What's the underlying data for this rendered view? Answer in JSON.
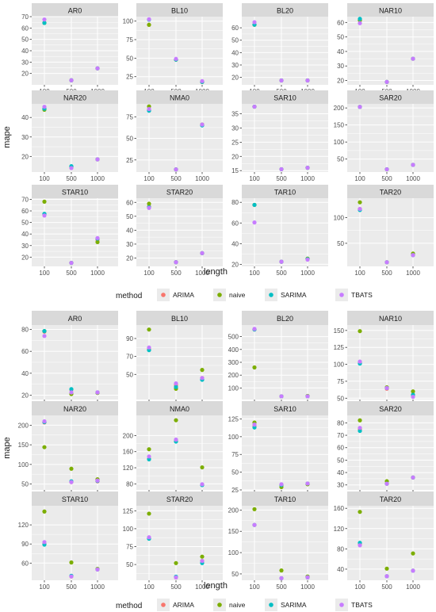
{
  "colors": {
    "panel_bg": "#ebebeb",
    "strip_bg": "#d9d9d9",
    "grid_major": "#ffffff",
    "tick_text": "#4d4d4d",
    "title_text": "#1a1a1a",
    "ARIMA": "#f8766d",
    "naive": "#7cae00",
    "SARIMA": "#00bfc4",
    "TBATS": "#c77cff"
  },
  "chart_data": [
    {
      "type": "scatter",
      "facet_layout": "4x3 grid, free y scales",
      "xlabel": "length",
      "ylabel": "mape",
      "x_categories": [
        "100",
        "500",
        "1000"
      ],
      "legend": {
        "title": "method",
        "placement": "bottom",
        "entries": [
          "ARIMA",
          "naive",
          "SARIMA",
          "TBATS"
        ]
      },
      "grid": true,
      "panels": [
        {
          "name": "AR0",
          "ylim": [
            10,
            70
          ],
          "yticks": [
            20,
            30,
            40,
            50,
            60,
            70
          ],
          "series": {
            "ARIMA": [
              64.5,
              14,
              24.5
            ],
            "naive": [
              64.5,
              14,
              24.5
            ],
            "SARIMA": [
              64.5,
              14,
              24.5
            ],
            "TBATS": [
              67.5,
              14,
              24.5
            ]
          }
        },
        {
          "name": "BL10",
          "ylim": [
            14,
            106
          ],
          "yticks": [
            25,
            50,
            75,
            100
          ],
          "series": {
            "ARIMA": [
              95,
              48,
              18
            ],
            "naive": [
              95,
              48,
              18
            ],
            "SARIMA": [
              102,
              48,
              18
            ],
            "TBATS": [
              102.5,
              49,
              19
            ]
          }
        },
        {
          "name": "BL20",
          "ylim": [
            14,
            69
          ],
          "yticks": [
            20,
            30,
            40,
            50,
            60
          ],
          "series": {
            "ARIMA": [
              62.5,
              17.5,
              17.5
            ],
            "naive": [
              62.5,
              17.5,
              17.5
            ],
            "SARIMA": [
              62.5,
              17.5,
              17.5
            ],
            "TBATS": [
              64.5,
              17.5,
              17.5
            ]
          }
        },
        {
          "name": "NAR10",
          "ylim": [
            17,
            64
          ],
          "yticks": [
            20,
            30,
            40,
            50,
            60
          ],
          "series": {
            "ARIMA": [
              61.5,
              19,
              35
            ],
            "naive": [
              61.5,
              19,
              35
            ],
            "SARIMA": [
              62.5,
              19,
              35
            ],
            "TBATS": [
              59.5,
              19,
              35
            ]
          }
        },
        {
          "name": "NAR20",
          "ylim": [
            12,
            47
          ],
          "yticks": [
            20,
            30,
            40
          ],
          "series": {
            "ARIMA": [
              44.5,
              14.5,
              18.5
            ],
            "naive": [
              44,
              14.5,
              18.5
            ],
            "SARIMA": [
              44.5,
              15,
              18.5
            ],
            "TBATS": [
              45.5,
              14,
              18.5
            ]
          }
        },
        {
          "name": "NMA0",
          "ylim": [
            11,
            90
          ],
          "yticks": [
            25,
            50,
            75
          ],
          "series": {
            "ARIMA": [
              83,
              14,
              66
            ],
            "naive": [
              87,
              14,
              66
            ],
            "SARIMA": [
              82,
              14,
              65
            ],
            "TBATS": [
              84,
              14,
              66
            ]
          }
        },
        {
          "name": "SAR10",
          "ylim": [
            14.5,
            38.5
          ],
          "yticks": [
            15,
            20,
            25,
            30,
            35
          ],
          "series": {
            "ARIMA": [
              37.5,
              15.5,
              16
            ],
            "naive": [
              37.5,
              15.5,
              16
            ],
            "SARIMA": [
              37.5,
              15.5,
              16
            ],
            "TBATS": [
              37.5,
              15.5,
              16
            ]
          }
        },
        {
          "name": "SAR20",
          "ylim": [
            12,
            212
          ],
          "yticks": [
            50,
            100,
            150,
            200
          ],
          "series": {
            "ARIMA": [
              203,
              20,
              33
            ],
            "naive": [
              203,
              20,
              33
            ],
            "SARIMA": [
              203,
              20,
              33
            ],
            "TBATS": [
              203,
              20,
              33
            ]
          }
        },
        {
          "name": "STAR10",
          "ylim": [
            12,
            71
          ],
          "yticks": [
            20,
            30,
            40,
            50,
            60,
            70
          ],
          "series": {
            "ARIMA": [
              57,
              15,
              35
            ],
            "naive": [
              68,
              15,
              33
            ],
            "SARIMA": [
              57.5,
              15,
              36
            ],
            "TBATS": [
              56,
              15,
              36.5
            ]
          }
        },
        {
          "name": "STAR20",
          "ylim": [
            14,
            63
          ],
          "yticks": [
            20,
            30,
            40,
            50,
            60
          ],
          "series": {
            "ARIMA": [
              57,
              17,
              23.5
            ],
            "naive": [
              59,
              17,
              23.5
            ],
            "SARIMA": [
              56.5,
              17,
              23.5
            ],
            "TBATS": [
              56,
              17,
              23.5
            ]
          }
        },
        {
          "name": "TAR10",
          "ylim": [
            18,
            84
          ],
          "yticks": [
            20,
            40,
            60,
            80
          ],
          "series": {
            "ARIMA": [
              77.5,
              22.5,
              25
            ],
            "naive": [
              77.5,
              22.5,
              25.5
            ],
            "SARIMA": [
              77.5,
              22.5,
              25
            ],
            "TBATS": [
              60.5,
              22.5,
              24.5
            ]
          }
        },
        {
          "name": "TAR20",
          "ylim": [
            5,
            138
          ],
          "yticks": [
            50,
            100
          ],
          "series": {
            "ARIMA": [
              117,
              13,
              27
            ],
            "naive": [
              130,
              13,
              30
            ],
            "SARIMA": [
              115,
              13,
              27
            ],
            "TBATS": [
              117,
              13,
              27
            ]
          }
        }
      ]
    },
    {
      "type": "scatter",
      "facet_layout": "4x3 grid, free y scales",
      "xlabel": "length",
      "ylabel": "mape",
      "x_categories": [
        "100",
        "500",
        "1000"
      ],
      "legend": {
        "title": "method",
        "placement": "bottom",
        "entries": [
          "ARIMA",
          "naive",
          "SARIMA",
          "TBATS"
        ]
      },
      "grid": true,
      "panels": [
        {
          "name": "AR0",
          "ylim": [
            16,
            84
          ],
          "yticks": [
            20,
            40,
            60,
            80
          ],
          "series": {
            "ARIMA": [
              78,
              25,
              22.5
            ],
            "naive": [
              78.5,
              21,
              22
            ],
            "SARIMA": [
              78.5,
              25.5,
              22.5
            ],
            "TBATS": [
              74,
              22.5,
              22.5
            ]
          }
        },
        {
          "name": "BL10",
          "ylim": [
            22,
            105
          ],
          "yticks": [
            50,
            70,
            90
          ],
          "series": {
            "ARIMA": [
              78,
              38,
              46
            ],
            "naive": [
              100,
              34,
              55
            ],
            "SARIMA": [
              77,
              36,
              44
            ],
            "TBATS": [
              80,
              40,
              46
            ]
          }
        },
        {
          "name": "BL20",
          "ylim": [
            10,
            590
          ],
          "yticks": [
            100,
            200,
            300,
            400,
            500
          ],
          "series": {
            "ARIMA": [
              555,
              35,
              35
            ],
            "naive": [
              260,
              35,
              38
            ],
            "SARIMA": [
              555,
              35,
              35
            ],
            "TBATS": [
              560,
              35,
              35
            ]
          }
        },
        {
          "name": "NAR10",
          "ylim": [
            48,
            158
          ],
          "yticks": [
            50,
            75,
            100,
            125,
            150
          ],
          "series": {
            "ARIMA": [
              103,
              64,
              55
            ],
            "naive": [
              149,
              66,
              60
            ],
            "SARIMA": [
              101,
              65,
              55
            ],
            "TBATS": [
              104,
              65,
              52
            ]
          }
        },
        {
          "name": "NAR20",
          "ylim": [
            35,
            225
          ],
          "yticks": [
            50,
            100,
            150,
            200
          ],
          "series": {
            "ARIMA": [
              207,
              55,
              57
            ],
            "naive": [
              144,
              89,
              62
            ],
            "SARIMA": [
              208,
              57,
              58
            ],
            "TBATS": [
              210,
              55,
              59
            ]
          }
        },
        {
          "name": "NMA0",
          "ylim": [
            65,
            250
          ],
          "yticks": [
            80,
            120,
            160,
            200
          ],
          "series": {
            "ARIMA": [
              142,
              187,
              78
            ],
            "naive": [
              166,
              238,
              121
            ],
            "SARIMA": [
              141,
              185,
              77
            ],
            "TBATS": [
              148,
              190,
              79
            ]
          }
        },
        {
          "name": "SAR10",
          "ylim": [
            25,
            130
          ],
          "yticks": [
            25,
            50,
            75,
            100,
            125
          ],
          "series": {
            "ARIMA": [
              115,
              32,
              34
            ],
            "naive": [
              120,
              29,
              33
            ],
            "SARIMA": [
              113,
              32,
              34
            ],
            "TBATS": [
              117,
              33,
              34
            ]
          }
        },
        {
          "name": "SAR20",
          "ylim": [
            26,
            86
          ],
          "yticks": [
            30,
            40,
            50,
            60,
            70,
            80
          ],
          "series": {
            "ARIMA": [
              75,
              31,
              36
            ],
            "naive": [
              82,
              33,
              36
            ],
            "SARIMA": [
              73.5,
              31,
              36
            ],
            "TBATS": [
              76,
              31,
              36
            ]
          }
        },
        {
          "name": "STAR10",
          "ylim": [
            33,
            150
          ],
          "yticks": [
            60,
            90,
            120
          ],
          "series": {
            "ARIMA": [
              90,
              39,
              50
            ],
            "naive": [
              141,
              61,
              51
            ],
            "SARIMA": [
              89,
              40,
              50
            ],
            "TBATS": [
              93,
              39,
              50
            ]
          }
        },
        {
          "name": "STAR20",
          "ylim": [
            28,
            132
          ],
          "yticks": [
            25,
            50,
            75,
            100,
            125
          ],
          "series": {
            "ARIMA": [
              87,
              32,
              55
            ],
            "naive": [
              121,
              52,
              61
            ],
            "SARIMA": [
              86,
              33,
              52
            ],
            "TBATS": [
              88,
              32,
              55
            ]
          }
        },
        {
          "name": "TAR10",
          "ylim": [
            35,
            210
          ],
          "yticks": [
            50,
            100,
            150,
            200
          ],
          "series": {
            "ARIMA": [
              165,
              40,
              42
            ],
            "naive": [
              202,
              58,
              44
            ],
            "SARIMA": [
              165,
              40,
              42
            ],
            "TBATS": [
              165,
              40,
              42
            ]
          }
        },
        {
          "name": "TAR20",
          "ylim": [
            18,
            165
          ],
          "yticks": [
            40,
            80,
            120,
            160
          ],
          "series": {
            "ARIMA": [
              90,
              26,
              37
            ],
            "naive": [
              153,
              41,
              71
            ],
            "SARIMA": [
              92,
              26,
              37
            ],
            "TBATS": [
              87,
              26,
              37
            ]
          }
        }
      ]
    }
  ]
}
